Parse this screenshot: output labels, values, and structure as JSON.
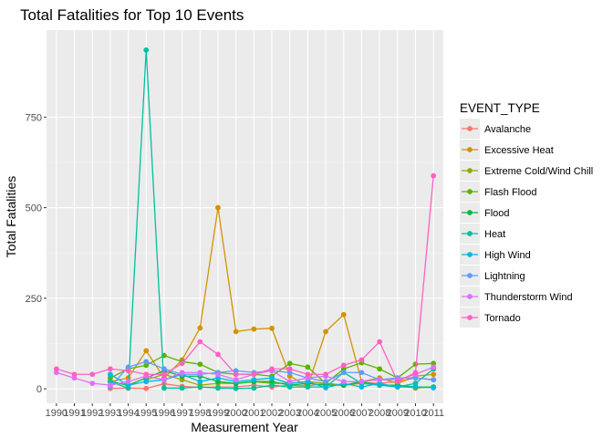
{
  "chart_data": {
    "type": "line",
    "title": "Total Fatalities for Top 10 Events",
    "xlabel": "Measurement Year",
    "ylabel": "Total Fatalities",
    "x": [
      1990,
      1991,
      1992,
      1993,
      1994,
      1995,
      1996,
      1997,
      1998,
      1999,
      2000,
      2001,
      2002,
      2003,
      2004,
      2005,
      2006,
      2007,
      2008,
      2009,
      2010,
      2011
    ],
    "x_tick_labels": [
      "1990",
      "1991",
      "1992",
      "1993",
      "1994",
      "1995",
      "1996",
      "1997",
      "1998",
      "1999",
      "2000",
      "2001",
      "2002",
      "2003",
      "2004",
      "2005",
      "2006",
      "2007",
      "2008",
      "2009",
      "2010",
      "2011"
    ],
    "ylim": [
      -40,
      990
    ],
    "y_ticks": [
      0,
      250,
      500,
      750
    ],
    "y_tick_labels": [
      "0",
      "250",
      "500",
      "750"
    ],
    "grid": true,
    "legend_title": "EVENT_TYPE",
    "legend_position": "right",
    "series": [
      {
        "name": "Avalanche",
        "color": "#F8766D",
        "points": [
          [
            1993,
            1
          ],
          [
            1994,
            2
          ],
          [
            1995,
            1
          ],
          [
            1996,
            14
          ],
          [
            1997,
            7
          ],
          [
            1998,
            4
          ],
          [
            1999,
            5
          ],
          [
            2000,
            5
          ],
          [
            2001,
            10
          ],
          [
            2002,
            5
          ],
          [
            2003,
            10
          ],
          [
            2004,
            8
          ],
          [
            2005,
            15
          ],
          [
            2006,
            10
          ],
          [
            2007,
            18
          ],
          [
            2008,
            15
          ],
          [
            2009,
            20
          ],
          [
            2010,
            30
          ],
          [
            2011,
            25
          ]
        ]
      },
      {
        "name": "Excessive Heat",
        "color": "#D39200",
        "points": [
          [
            1993,
            20
          ],
          [
            1994,
            30
          ],
          [
            1995,
            105
          ],
          [
            1996,
            30
          ],
          [
            1997,
            80
          ],
          [
            1998,
            168
          ],
          [
            1999,
            500
          ],
          [
            2000,
            158
          ],
          [
            2001,
            165
          ],
          [
            2002,
            167
          ],
          [
            2003,
            35
          ],
          [
            2004,
            7
          ],
          [
            2005,
            158
          ],
          [
            2006,
            205
          ],
          [
            2007,
            20
          ],
          [
            2008,
            30
          ],
          [
            2009,
            15
          ],
          [
            2010,
            35
          ],
          [
            2011,
            40
          ]
        ]
      },
      {
        "name": "Extreme Cold/Wind Chill",
        "color": "#93AA00",
        "points": [
          [
            1995,
            25
          ],
          [
            1996,
            40
          ],
          [
            1997,
            25
          ],
          [
            1998,
            10
          ],
          [
            1999,
            15
          ],
          [
            2000,
            15
          ],
          [
            2001,
            20
          ],
          [
            2002,
            15
          ],
          [
            2003,
            15
          ],
          [
            2004,
            20
          ],
          [
            2005,
            15
          ],
          [
            2006,
            10
          ],
          [
            2007,
            15
          ],
          [
            2008,
            10
          ],
          [
            2009,
            10
          ],
          [
            2010,
            2
          ],
          [
            2011,
            5
          ]
        ]
      },
      {
        "name": "Flash Flood",
        "color": "#5BB300",
        "points": [
          [
            1993,
            30
          ],
          [
            1994,
            55
          ],
          [
            1995,
            65
          ],
          [
            1996,
            92
          ],
          [
            1997,
            75
          ],
          [
            1998,
            68
          ],
          [
            1999,
            45
          ],
          [
            2000,
            40
          ],
          [
            2001,
            40
          ],
          [
            2002,
            35
          ],
          [
            2003,
            70
          ],
          [
            2004,
            60
          ],
          [
            2005,
            15
          ],
          [
            2006,
            55
          ],
          [
            2007,
            72
          ],
          [
            2008,
            55
          ],
          [
            2009,
            30
          ],
          [
            2010,
            68
          ],
          [
            2011,
            70
          ]
        ]
      },
      {
        "name": "Flood",
        "color": "#00BA38",
        "points": [
          [
            1993,
            20
          ],
          [
            1994,
            10
          ],
          [
            1995,
            30
          ],
          [
            1996,
            50
          ],
          [
            1997,
            35
          ],
          [
            1998,
            35
          ],
          [
            1999,
            20
          ],
          [
            2000,
            15
          ],
          [
            2001,
            20
          ],
          [
            2002,
            20
          ],
          [
            2003,
            10
          ],
          [
            2004,
            15
          ],
          [
            2005,
            10
          ],
          [
            2006,
            10
          ],
          [
            2007,
            20
          ],
          [
            2008,
            10
          ],
          [
            2009,
            10
          ],
          [
            2010,
            5
          ],
          [
            2011,
            5
          ]
        ]
      },
      {
        "name": "Heat",
        "color": "#00C19F",
        "points": [
          [
            1993,
            20
          ],
          [
            1994,
            2
          ],
          [
            1995,
            935
          ],
          [
            1996,
            2
          ],
          [
            1997,
            2
          ],
          [
            1998,
            5
          ],
          [
            1999,
            2
          ],
          [
            2000,
            1
          ],
          [
            2001,
            2
          ],
          [
            2002,
            10
          ],
          [
            2003,
            5
          ],
          [
            2004,
            5
          ],
          [
            2005,
            5
          ],
          [
            2006,
            45
          ],
          [
            2007,
            15
          ],
          [
            2008,
            10
          ],
          [
            2009,
            5
          ],
          [
            2010,
            15
          ],
          [
            2011,
            55
          ]
        ]
      },
      {
        "name": "High Wind",
        "color": "#00B9E3",
        "points": [
          [
            1993,
            40
          ],
          [
            1994,
            10
          ],
          [
            1995,
            20
          ],
          [
            1996,
            25
          ],
          [
            1997,
            40
          ],
          [
            1998,
            20
          ],
          [
            1999,
            30
          ],
          [
            2000,
            20
          ],
          [
            2001,
            25
          ],
          [
            2002,
            30
          ],
          [
            2003,
            15
          ],
          [
            2004,
            20
          ],
          [
            2005,
            3
          ],
          [
            2006,
            15
          ],
          [
            2007,
            5
          ],
          [
            2008,
            15
          ],
          [
            2009,
            5
          ],
          [
            2010,
            5
          ],
          [
            2011,
            3
          ]
        ]
      },
      {
        "name": "Lightning",
        "color": "#619CFF",
        "points": [
          [
            1993,
            5
          ],
          [
            1994,
            60
          ],
          [
            1995,
            75
          ],
          [
            1996,
            55
          ],
          [
            1997,
            40
          ],
          [
            1998,
            40
          ],
          [
            1999,
            45
          ],
          [
            2000,
            50
          ],
          [
            2001,
            45
          ],
          [
            2002,
            50
          ],
          [
            2003,
            45
          ],
          [
            2004,
            30
          ],
          [
            2005,
            20
          ],
          [
            2006,
            45
          ],
          [
            2007,
            45
          ],
          [
            2008,
            25
          ],
          [
            2009,
            30
          ],
          [
            2010,
            30
          ],
          [
            2011,
            25
          ]
        ]
      },
      {
        "name": "Thunderstorm Wind",
        "color": "#DB72FB",
        "points": [
          [
            1990,
            45
          ],
          [
            1991,
            30
          ],
          [
            1992,
            15
          ],
          [
            1993,
            10
          ],
          [
            1994,
            20
          ],
          [
            1995,
            35
          ],
          [
            1996,
            25
          ],
          [
            1997,
            45
          ],
          [
            1998,
            45
          ],
          [
            1999,
            40
          ],
          [
            2000,
            25
          ],
          [
            2001,
            40
          ],
          [
            2002,
            50
          ],
          [
            2003,
            20
          ],
          [
            2004,
            30
          ],
          [
            2005,
            35
          ],
          [
            2006,
            20
          ],
          [
            2007,
            20
          ],
          [
            2008,
            25
          ],
          [
            2009,
            25
          ],
          [
            2010,
            40
          ],
          [
            2011,
            60
          ]
        ]
      },
      {
        "name": "Tornado",
        "color": "#FF61C3",
        "points": [
          [
            1990,
            55
          ],
          [
            1991,
            40
          ],
          [
            1992,
            40
          ],
          [
            1993,
            55
          ],
          [
            1994,
            50
          ],
          [
            1995,
            40
          ],
          [
            1996,
            40
          ],
          [
            1997,
            70
          ],
          [
            1998,
            130
          ],
          [
            1999,
            95
          ],
          [
            2000,
            40
          ],
          [
            2001,
            40
          ],
          [
            2002,
            55
          ],
          [
            2003,
            55
          ],
          [
            2004,
            40
          ],
          [
            2005,
            40
          ],
          [
            2006,
            65
          ],
          [
            2007,
            80
          ],
          [
            2008,
            130
          ],
          [
            2009,
            20
          ],
          [
            2010,
            45
          ],
          [
            2011,
            588
          ]
        ]
      }
    ]
  }
}
